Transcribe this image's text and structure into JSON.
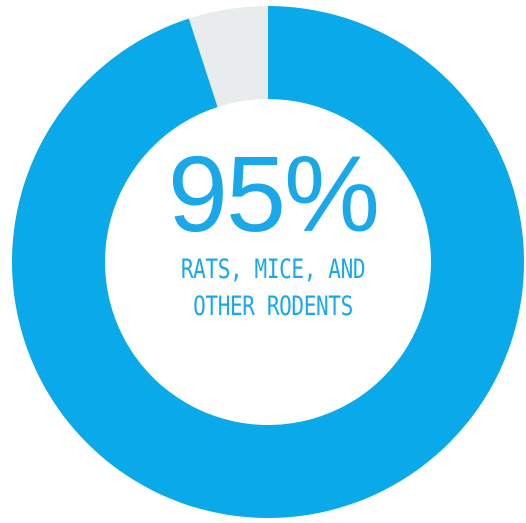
{
  "chart_data": {
    "type": "pie",
    "style": "donut",
    "slices": [
      {
        "label": "Rats, mice, and other rodents",
        "value": 95,
        "color": "#0aa9e9"
      },
      {
        "label": "",
        "value": 5,
        "color": "#e9ecec"
      }
    ],
    "center_text": {
      "value": "95%",
      "line1": "RATS, MICE, AND",
      "line2": "OTHER RODENTS"
    }
  }
}
